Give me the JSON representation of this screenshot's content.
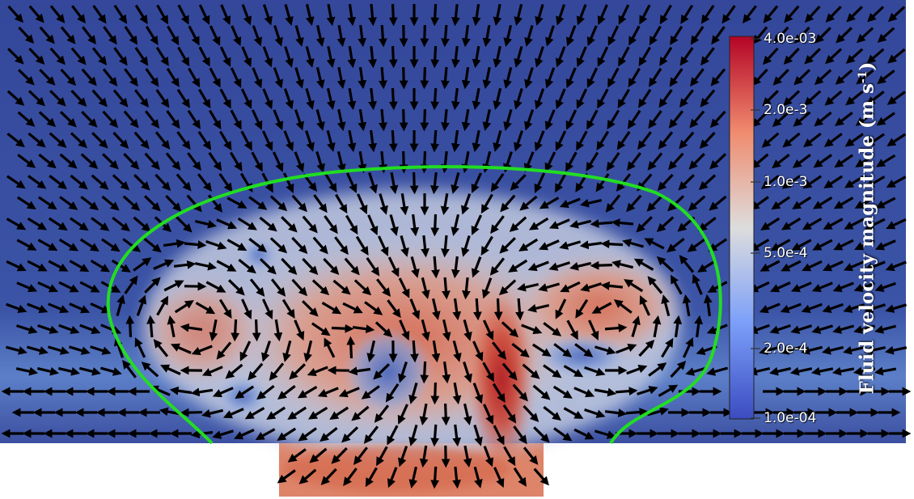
{
  "figure": {
    "description_colors": {
      "background_field": "#3a4f9c",
      "contour": "#22dd22",
      "vector": "#000000"
    },
    "colorbar": {
      "title_main": "Fluid velocity magnitude (m s",
      "title_exponent": "-1",
      "title_close": ")",
      "scale": "log",
      "range": [
        0.0001,
        0.004
      ],
      "ticks": [
        "4.0e-03",
        "2.0e-3",
        "1.0e-3",
        "5.0e-4",
        "2.0e-4",
        "1.0e-04"
      ],
      "colors": [
        "#3b4cc0",
        "#7b9ff9",
        "#dddddd",
        "#f08b6e",
        "#b40426"
      ]
    }
  }
}
